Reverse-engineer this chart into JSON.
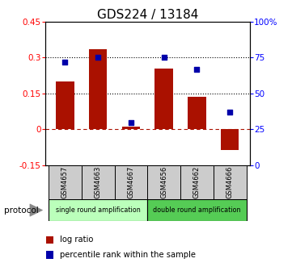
{
  "title": "GDS224 / 13184",
  "samples": [
    "GSM4657",
    "GSM4663",
    "GSM4667",
    "GSM4656",
    "GSM4662",
    "GSM4666"
  ],
  "log_ratio": [
    0.2,
    0.335,
    0.01,
    0.255,
    0.135,
    -0.085
  ],
  "percentile_rank": [
    72,
    75,
    30,
    75,
    67,
    37
  ],
  "bar_color": "#AA1100",
  "square_color": "#0000AA",
  "ylim_left": [
    -0.15,
    0.45
  ],
  "ylim_right": [
    0,
    100
  ],
  "yticks_left": [
    -0.15,
    0.0,
    0.15,
    0.3,
    0.45
  ],
  "ytick_labels_left": [
    "-0.15",
    "0",
    "0.15",
    "0.3",
    "0.45"
  ],
  "yticks_right": [
    0,
    25,
    50,
    75,
    100
  ],
  "ytick_labels_right": [
    "0",
    "25",
    "50",
    "75",
    "100%"
  ],
  "hlines_dotted": [
    0.15,
    0.3
  ],
  "hline_dashed": 0.0,
  "protocol_groups": [
    {
      "label": "single round amplification",
      "start": 0,
      "end": 3,
      "color": "#bbffbb"
    },
    {
      "label": "double round amplification",
      "start": 3,
      "end": 6,
      "color": "#55cc55"
    }
  ],
  "protocol_label": "protocol",
  "legend_items": [
    {
      "label": "log ratio",
      "color": "#AA1100",
      "marker": "s"
    },
    {
      "label": "percentile rank within the sample",
      "color": "#0000AA",
      "marker": "s"
    }
  ],
  "bg_color": "#ffffff",
  "sample_box_color": "#cccccc",
  "title_fontsize": 11,
  "tick_fontsize": 7.5
}
